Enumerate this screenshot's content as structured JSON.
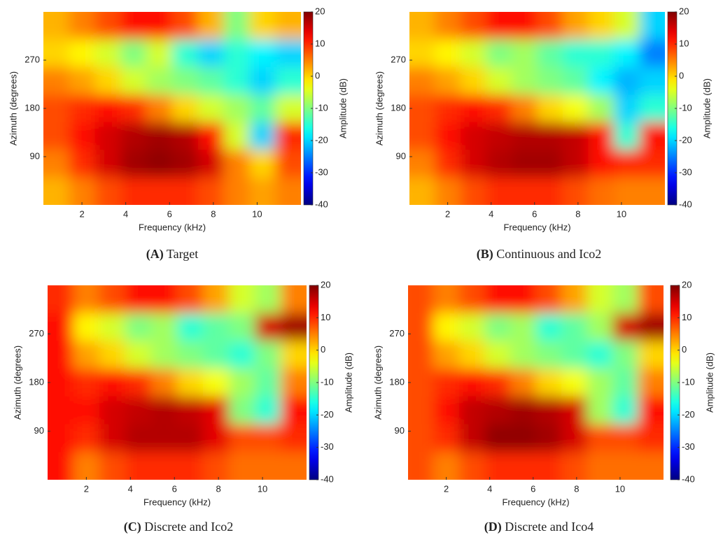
{
  "chart_data": [
    {
      "type": "heatmap",
      "caption_label": "(A)",
      "caption": "Target",
      "xlabel": "Frequency (kHz)",
      "ylabel": "Azimuth (degrees)",
      "colorbar_label": "Amplitude (dB)",
      "xlim": [
        0.24,
        12
      ],
      "xticks": [
        2,
        4,
        6,
        8,
        10
      ],
      "ylim": [
        0,
        360
      ],
      "yticks": [
        90,
        180,
        270
      ],
      "clim": [
        -40,
        20
      ],
      "cticks": [
        -40,
        -30,
        -20,
        -10,
        0,
        10,
        20
      ],
      "colormap": "jet",
      "z": [
        [
          2,
          5,
          8,
          12,
          12,
          8,
          2,
          -10,
          0,
          2
        ],
        [
          0,
          -2,
          -5,
          -10,
          -5,
          -15,
          -20,
          -15,
          -18,
          -20
        ],
        [
          5,
          3,
          0,
          -5,
          -8,
          -10,
          -12,
          -15,
          -20,
          -15
        ],
        [
          8,
          10,
          12,
          10,
          5,
          0,
          -5,
          -8,
          -12,
          -5
        ],
        [
          8,
          12,
          15,
          17,
          18,
          17,
          12,
          -5,
          -20,
          10
        ],
        [
          5,
          10,
          15,
          18,
          19,
          18,
          15,
          5,
          0,
          8
        ],
        [
          2,
          5,
          8,
          10,
          10,
          10,
          8,
          5,
          3,
          5
        ]
      ]
    },
    {
      "type": "heatmap",
      "caption_label": "(B)",
      "caption": "Continuous and Ico2",
      "xlabel": "Frequency (kHz)",
      "ylabel": "Azimuth (degrees)",
      "colorbar_label": "Amplitude (dB)",
      "xlim": [
        0.24,
        12
      ],
      "xticks": [
        2,
        4,
        6,
        8,
        10
      ],
      "ylim": [
        0,
        360
      ],
      "yticks": [
        90,
        180,
        270
      ],
      "clim": [
        -40,
        20
      ],
      "cticks": [
        -40,
        -30,
        -20,
        -10,
        0,
        10,
        20
      ],
      "colormap": "jet",
      "z": [
        [
          2,
          5,
          8,
          12,
          12,
          8,
          3,
          0,
          -5,
          -20
        ],
        [
          0,
          -2,
          -5,
          -10,
          -8,
          -12,
          -15,
          -15,
          -18,
          -25
        ],
        [
          5,
          3,
          0,
          -5,
          -8,
          -10,
          -12,
          -18,
          -22,
          -20
        ],
        [
          8,
          10,
          12,
          10,
          5,
          0,
          -3,
          -8,
          -20,
          -15
        ],
        [
          8,
          12,
          15,
          16,
          17,
          17,
          16,
          12,
          -15,
          12
        ],
        [
          5,
          10,
          15,
          17,
          18,
          18,
          16,
          12,
          10,
          10
        ],
        [
          2,
          5,
          8,
          10,
          10,
          10,
          8,
          6,
          5,
          5
        ]
      ]
    },
    {
      "type": "heatmap",
      "caption_label": "(C)",
      "caption": "Discrete and Ico2",
      "xlabel": "Frequency (kHz)",
      "ylabel": "Azimuth (degrees)",
      "colorbar_label": "Amplitude (dB)",
      "xlim": [
        0.24,
        12
      ],
      "xticks": [
        2,
        4,
        6,
        8,
        10
      ],
      "ylim": [
        0,
        360
      ],
      "yticks": [
        90,
        180,
        270
      ],
      "clim": [
        -40,
        20
      ],
      "cticks": [
        -40,
        -30,
        -20,
        -10,
        0,
        10,
        20
      ],
      "colormap": "jet",
      "z": [
        [
          10,
          5,
          8,
          12,
          12,
          8,
          3,
          -5,
          -8,
          5
        ],
        [
          12,
          -2,
          -5,
          -10,
          -8,
          -15,
          -12,
          -10,
          15,
          18
        ],
        [
          12,
          3,
          0,
          -5,
          -8,
          -10,
          -12,
          -15,
          -10,
          0
        ],
        [
          12,
          10,
          12,
          10,
          5,
          0,
          -3,
          -8,
          -12,
          5
        ],
        [
          12,
          12,
          15,
          16,
          17,
          16,
          14,
          -10,
          -15,
          12
        ],
        [
          12,
          10,
          15,
          17,
          17,
          17,
          14,
          8,
          8,
          10
        ],
        [
          12,
          5,
          8,
          10,
          10,
          10,
          8,
          6,
          6,
          6
        ]
      ]
    },
    {
      "type": "heatmap",
      "caption_label": "(D)",
      "caption": "Discrete and Ico4",
      "xlabel": "Frequency (kHz)",
      "ylabel": "Azimuth (degrees)",
      "colorbar_label": "Amplitude (dB)",
      "xlim": [
        0.24,
        12
      ],
      "xticks": [
        2,
        4,
        6,
        8,
        10
      ],
      "ylim": [
        0,
        360
      ],
      "yticks": [
        90,
        180,
        270
      ],
      "clim": [
        -40,
        20
      ],
      "cticks": [
        -40,
        -30,
        -20,
        -10,
        0,
        10,
        20
      ],
      "colormap": "jet",
      "z": [
        [
          8,
          5,
          8,
          12,
          12,
          8,
          3,
          -5,
          -8,
          8
        ],
        [
          8,
          -2,
          -5,
          -10,
          -8,
          -15,
          -12,
          -8,
          15,
          18
        ],
        [
          8,
          3,
          0,
          -5,
          -8,
          -10,
          -12,
          -15,
          -10,
          0
        ],
        [
          8,
          10,
          12,
          10,
          5,
          0,
          -3,
          -8,
          -12,
          5
        ],
        [
          8,
          12,
          16,
          17,
          18,
          17,
          15,
          -8,
          -15,
          12
        ],
        [
          8,
          10,
          16,
          19,
          19,
          18,
          15,
          8,
          8,
          10
        ],
        [
          8,
          5,
          8,
          10,
          10,
          10,
          8,
          6,
          6,
          6
        ]
      ]
    }
  ]
}
